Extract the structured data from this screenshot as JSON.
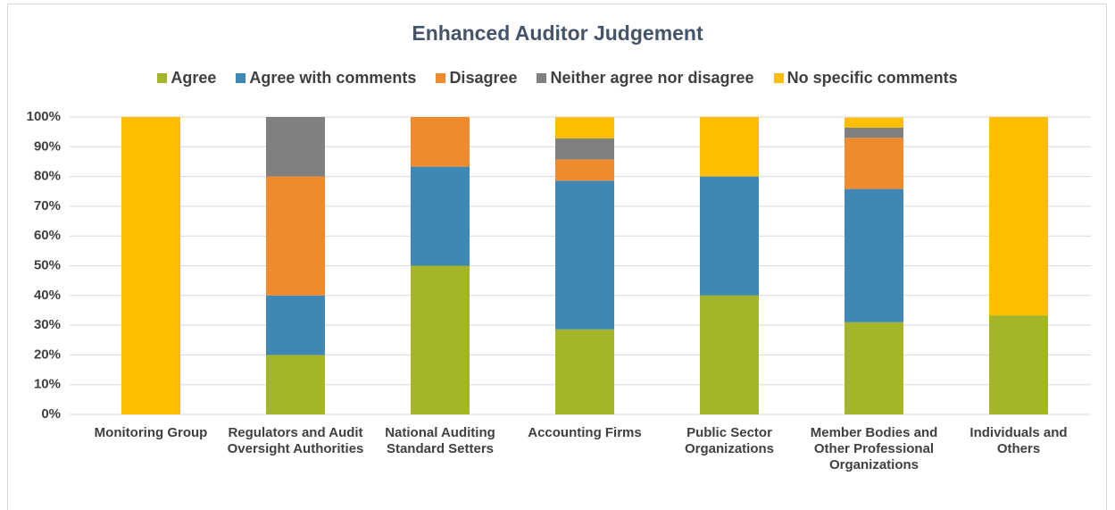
{
  "chart_data": {
    "type": "stacked_bar",
    "title": "Enhanced Auditor Judgement",
    "categories": [
      "Monitoring Group",
      "Regulators and Audit Oversight Authorities",
      "National Auditing Standard Setters",
      "Accounting Firms",
      "Public Sector Organizations",
      "Member Bodies and Other Professional Organizations",
      "Individuals and Others"
    ],
    "series": [
      {
        "name": "Agree",
        "color": "#a5b52a",
        "values": [
          0,
          20,
          50,
          28.6,
          40,
          31.0,
          33.3
        ]
      },
      {
        "name": "Agree with comments",
        "color": "#3f88b5",
        "values": [
          0,
          20,
          33.3,
          50,
          40,
          44.8,
          0
        ]
      },
      {
        "name": "Disagree",
        "color": "#f08a2e",
        "values": [
          0,
          40,
          16.7,
          7.1,
          0,
          17.2,
          0
        ]
      },
      {
        "name": "Neither agree nor disagree",
        "color": "#808080",
        "values": [
          0,
          20,
          0,
          7.1,
          0,
          3.4,
          0
        ]
      },
      {
        "name": "No specific comments",
        "color": "#fcbf00",
        "values": [
          100,
          0,
          0,
          7.1,
          20,
          3.4,
          66.7
        ]
      }
    ],
    "ylim": [
      0,
      100
    ],
    "yticks": [
      {
        "value": 0,
        "label": "0%"
      },
      {
        "value": 10,
        "label": "10%"
      },
      {
        "value": 20,
        "label": "20%"
      },
      {
        "value": 30,
        "label": "30%"
      },
      {
        "value": 40,
        "label": "40%"
      },
      {
        "value": 50,
        "label": "50%"
      },
      {
        "value": 60,
        "label": "60%"
      },
      {
        "value": 70,
        "label": "70%"
      },
      {
        "value": 80,
        "label": "80%"
      },
      {
        "value": 90,
        "label": "90%"
      },
      {
        "value": 100,
        "label": "100%"
      }
    ],
    "grid": true,
    "legend": "top"
  }
}
